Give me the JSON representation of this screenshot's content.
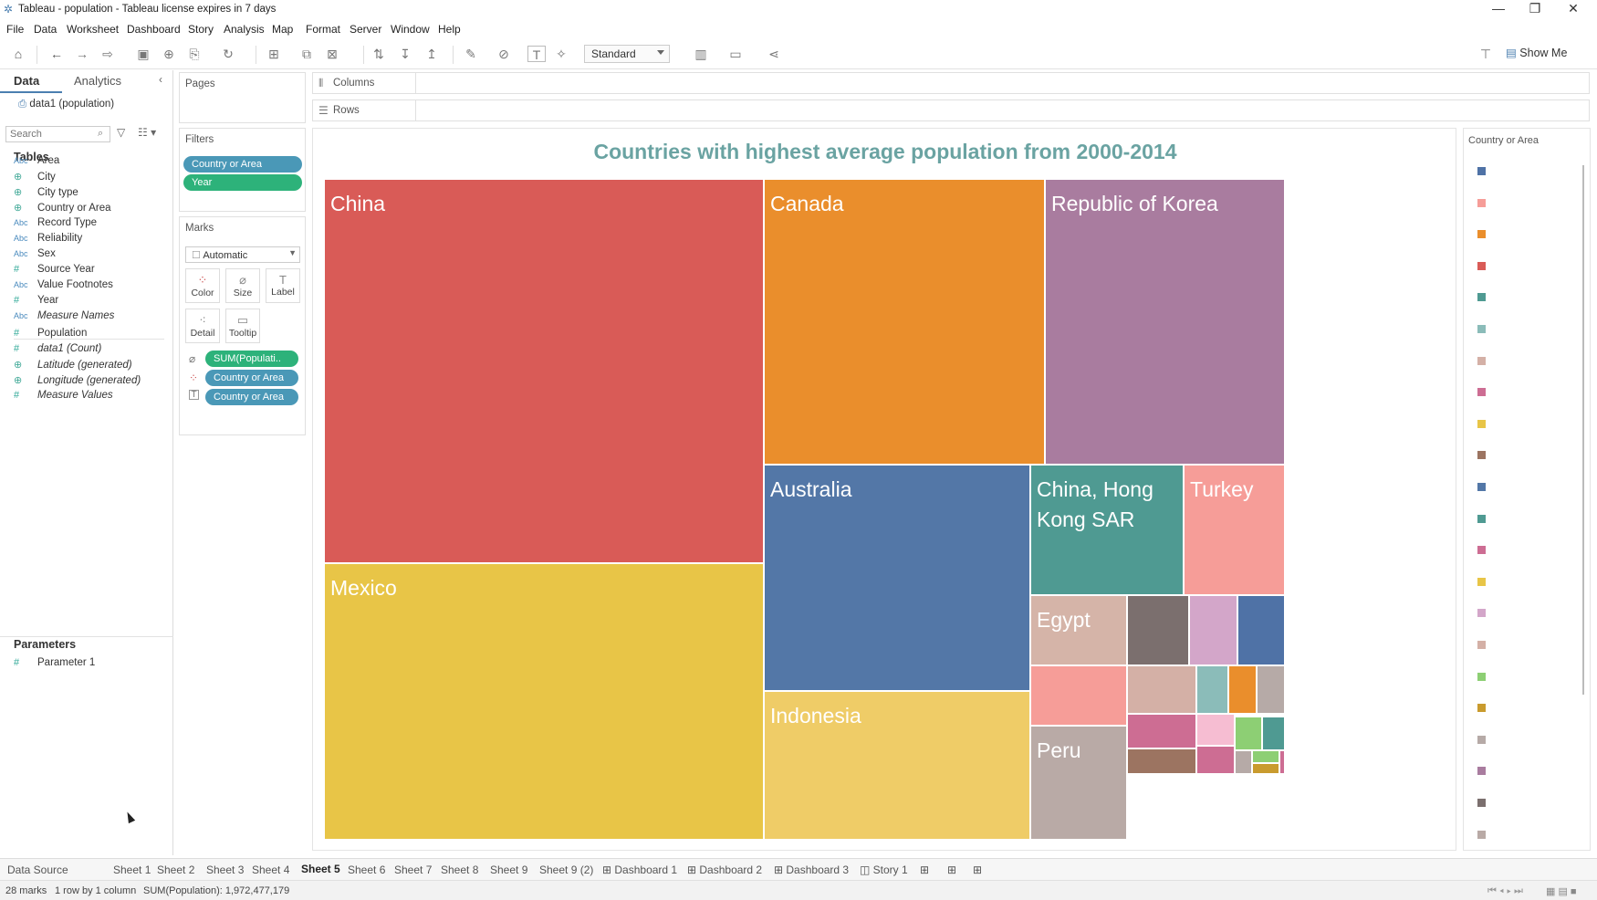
{
  "window": {
    "title": "Tableau - population - Tableau license expires in 7 days",
    "controls": [
      "—",
      "❐",
      "✕"
    ]
  },
  "menu": [
    "File",
    "Data",
    "Worksheet",
    "Dashboard",
    "Story",
    "Analysis",
    "Map",
    "Format",
    "Server",
    "Window",
    "Help"
  ],
  "toolbar": {
    "fit_select": "Standard",
    "show_me": "Show Me"
  },
  "data_pane": {
    "tabs": [
      "Data",
      "Analytics"
    ],
    "datasource": "data1 (population)",
    "search_placeholder": "Search",
    "tables_heading": "Tables",
    "fields": [
      {
        "icon": "Abc",
        "name": "Area",
        "kind": "str"
      },
      {
        "icon": "⊕",
        "name": "City",
        "kind": "geo"
      },
      {
        "icon": "⊕",
        "name": "City type",
        "kind": "geo"
      },
      {
        "icon": "⊕",
        "name": "Country or Area",
        "kind": "geo"
      },
      {
        "icon": "Abc",
        "name": "Record Type",
        "kind": "str"
      },
      {
        "icon": "Abc",
        "name": "Reliability",
        "kind": "str"
      },
      {
        "icon": "Abc",
        "name": "Sex",
        "kind": "str"
      },
      {
        "icon": "#",
        "name": "Source Year",
        "kind": "num"
      },
      {
        "icon": "Abc",
        "name": "Value Footnotes",
        "kind": "str"
      },
      {
        "icon": "#",
        "name": "Year",
        "kind": "num"
      },
      {
        "icon": "Abc",
        "name": "Measure Names",
        "kind": "str",
        "italic": true
      },
      {
        "icon": "#",
        "name": "Population",
        "kind": "num"
      },
      {
        "icon": "#",
        "name": "data1 (Count)",
        "kind": "num",
        "italic": true
      },
      {
        "icon": "⊕",
        "name": "Latitude (generated)",
        "kind": "geo",
        "italic": true
      },
      {
        "icon": "⊕",
        "name": "Longitude (generated)",
        "kind": "geo",
        "italic": true
      },
      {
        "icon": "#",
        "name": "Measure Values",
        "kind": "num",
        "italic": true
      }
    ],
    "parameters_heading": "Parameters",
    "parameters": [
      "Parameter 1"
    ]
  },
  "shelves": {
    "pages": "Pages",
    "filters": "Filters",
    "filter_pills": [
      "Country or Area",
      "Year"
    ],
    "marks": "Marks",
    "mark_type": "Automatic",
    "mark_buttons": [
      "Color",
      "Size",
      "Label",
      "Detail",
      "Tooltip"
    ],
    "mark_pills": [
      "SUM(Populati..",
      "Country or Area",
      "Country or Area"
    ],
    "columns": "Columns",
    "rows": "Rows"
  },
  "viz": {
    "title": "Countries with highest average population from 2000-2014",
    "legend_title": "Country or Area"
  },
  "chart_data": {
    "type": "treemap",
    "title": "Countries with highest average population from 2000-2014",
    "legend": "Country or Area",
    "labeled_cells": [
      "China",
      "Mexico",
      "Canada",
      "Republic of Korea",
      "Australia",
      "China, Hong Kong SAR",
      "Turkey",
      "Egypt",
      "Indonesia",
      "Peru"
    ],
    "total_marks": 28
  },
  "treemap_cells": [
    {
      "label": "China",
      "color": "#d95b57"
    },
    {
      "label": "Mexico",
      "color": "#e8c547"
    },
    {
      "label": "Canada",
      "color": "#ea8e2c"
    },
    {
      "label": "Republic of Korea",
      "color": "#a97c9f"
    },
    {
      "label": "Australia",
      "color": "#5377a7"
    },
    {
      "label": "China, Hong\nKong SAR",
      "color": "#4f9a92"
    },
    {
      "label": "Turkey",
      "color": "#f69d98"
    },
    {
      "label": "Indonesia",
      "color": "#efcc67"
    },
    {
      "label": "Egypt",
      "color": "#d5b4a8"
    },
    {
      "label": "",
      "color": "#7b6f6e"
    },
    {
      "label": "",
      "color": "#d3a6c9"
    },
    {
      "label": "",
      "color": "#4f72a6"
    },
    {
      "label": "",
      "color": "#f69d98"
    },
    {
      "label": "",
      "color": "#d4b0a6"
    },
    {
      "label": "",
      "color": "#8bbcb9"
    },
    {
      "label": "",
      "color": "#ea8e2c"
    },
    {
      "label": "",
      "color": "#b6aaa7"
    },
    {
      "label": "Peru",
      "color": "#b9aaa6"
    },
    {
      "label": "",
      "color": "#cd6d93"
    },
    {
      "label": "",
      "color": "#f6bdd2"
    },
    {
      "label": "",
      "color": "#8dcf74"
    },
    {
      "label": "",
      "color": "#4f9a92"
    },
    {
      "label": "",
      "color": "#9c7461"
    },
    {
      "label": "",
      "color": "#cd6d93"
    },
    {
      "label": "",
      "color": "#b6aaa7"
    },
    {
      "label": "",
      "color": "#8dcf74"
    },
    {
      "label": "",
      "color": "#c99b2e"
    },
    {
      "label": "",
      "color": "#cd6d93"
    }
  ],
  "legend_colors": [
    "#4f72a6",
    "#f69d98",
    "#ea8e2c",
    "#d95b57",
    "#4f9a92",
    "#8bbcb9",
    "#d4b0a6",
    "#cd6d93",
    "#e8c547",
    "#9c7461",
    "#5377a7",
    "#4f9a92",
    "#cd6d93",
    "#e8c547",
    "#d3a6c9",
    "#d4b0a6",
    "#8dcf74",
    "#c99b2e",
    "#b6aaa7",
    "#a97c9f",
    "#7b6f6e",
    "#b9aaa6"
  ],
  "sheet_tabs": [
    "Data Source",
    "Sheet 1",
    "Sheet 2",
    "Sheet 3",
    "Sheet 4",
    "Sheet 5",
    "Sheet 6",
    "Sheet 7",
    "Sheet 8",
    "Sheet 9",
    "Sheet 9 (2)",
    "⊞ Dashboard 1",
    "⊞ Dashboard 2",
    "⊞ Dashboard 3",
    "◫ Story 1"
  ],
  "active_tab": "Sheet 5",
  "status": {
    "marks": "28 marks",
    "layout": "1 row by 1 column",
    "sum": "SUM(Population): 1,972,477,179"
  }
}
